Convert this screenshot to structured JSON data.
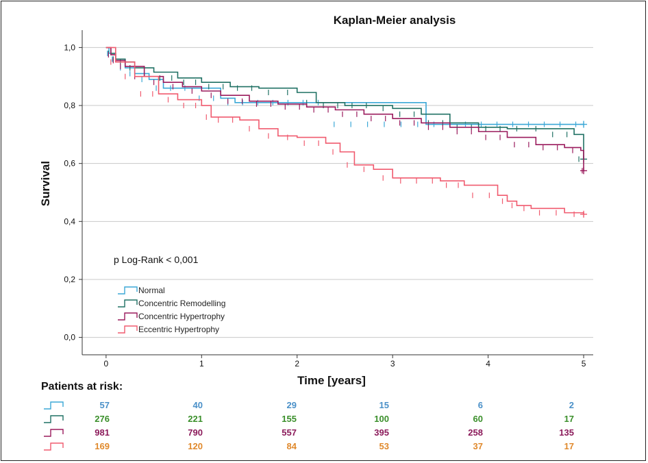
{
  "chart_data": {
    "type": "line",
    "title": "Kaplan-Meier analysis",
    "xlabel": "Time [years]",
    "ylabel": "Survival",
    "xlim": [
      -0.25,
      5.1
    ],
    "ylim": [
      -0.06,
      1.06
    ],
    "x_ticks": [
      0,
      1,
      2,
      3,
      4,
      5
    ],
    "x_tick_labels": [
      "0",
      "1",
      "2",
      "3",
      "4",
      "5"
    ],
    "y_ticks": [
      0.0,
      0.2,
      0.4,
      0.6,
      0.8,
      1.0
    ],
    "y_tick_labels": [
      "0,0",
      "0,2",
      "0,4",
      "0,6",
      "0,8",
      "1,0"
    ],
    "grid": "horizontal",
    "legend_position": "bottom-left",
    "annotation": "p Log-Rank < 0,001",
    "series": [
      {
        "name": "Normal",
        "color": "#3aa7d6",
        "x": [
          0,
          0.03,
          0.1,
          0.2,
          0.3,
          0.45,
          0.6,
          0.9,
          1.2,
          1.35,
          2.3,
          3.35,
          5.0
        ],
        "y": [
          1.0,
          0.98,
          0.96,
          0.93,
          0.91,
          0.89,
          0.86,
          0.86,
          0.825,
          0.81,
          0.81,
          0.735,
          0.735
        ]
      },
      {
        "name": "Concentric Remodelling",
        "color": "#1f7063",
        "x": [
          0,
          0.05,
          0.1,
          0.2,
          0.3,
          0.5,
          0.75,
          1.0,
          1.3,
          1.6,
          2.0,
          2.2,
          2.5,
          2.8,
          3.0,
          3.3,
          3.6,
          3.9,
          4.2,
          4.6,
          4.9,
          5.0
        ],
        "y": [
          1.0,
          0.98,
          0.96,
          0.95,
          0.93,
          0.915,
          0.895,
          0.88,
          0.865,
          0.86,
          0.845,
          0.81,
          0.8,
          0.8,
          0.79,
          0.77,
          0.74,
          0.725,
          0.72,
          0.72,
          0.7,
          0.615
        ]
      },
      {
        "name": "Concentric Hypertrophy",
        "color": "#9a1a5c",
        "x": [
          0,
          0.05,
          0.1,
          0.2,
          0.4,
          0.6,
          0.8,
          1.0,
          1.2,
          1.5,
          1.8,
          2.1,
          2.4,
          2.7,
          3.0,
          3.3,
          3.6,
          3.9,
          4.2,
          4.5,
          4.8,
          4.97,
          5.0
        ],
        "y": [
          1.0,
          0.975,
          0.955,
          0.935,
          0.9,
          0.88,
          0.865,
          0.85,
          0.835,
          0.815,
          0.805,
          0.795,
          0.785,
          0.77,
          0.755,
          0.74,
          0.725,
          0.71,
          0.69,
          0.665,
          0.655,
          0.645,
          0.575
        ]
      },
      {
        "name": "Eccentric Hypertrophy",
        "color": "#f05a6e",
        "x": [
          0,
          0.1,
          0.3,
          0.55,
          0.75,
          1.0,
          1.1,
          1.4,
          1.6,
          1.8,
          2.0,
          2.3,
          2.45,
          2.6,
          2.8,
          3.0,
          3.5,
          3.75,
          4.1,
          4.2,
          4.3,
          4.45,
          4.8,
          5.0
        ],
        "y": [
          1.0,
          0.95,
          0.9,
          0.84,
          0.82,
          0.8,
          0.76,
          0.75,
          0.72,
          0.695,
          0.69,
          0.67,
          0.64,
          0.595,
          0.58,
          0.55,
          0.54,
          0.525,
          0.49,
          0.47,
          0.455,
          0.445,
          0.43,
          0.425
        ]
      }
    ],
    "risk_table": {
      "title": "Patients at risk:",
      "rows": [
        {
          "series": "Normal",
          "color": "#4a90c8",
          "values": [
            57,
            40,
            29,
            15,
            6,
            2
          ]
        },
        {
          "series": "Concentric Remodelling",
          "color": "#3a8f2a",
          "values": [
            276,
            221,
            155,
            100,
            60,
            17
          ]
        },
        {
          "series": "Concentric Hypertrophy",
          "color": "#8b1a5a",
          "values": [
            981,
            790,
            557,
            395,
            258,
            135
          ]
        },
        {
          "series": "Eccentric Hypertrophy",
          "color": "#e0892c",
          "values": [
            169,
            120,
            84,
            53,
            37,
            17
          ]
        }
      ],
      "symbol_colors": [
        "#3aa7d6",
        "#1f7063",
        "#9a1a5c",
        "#f05a6e"
      ]
    }
  }
}
